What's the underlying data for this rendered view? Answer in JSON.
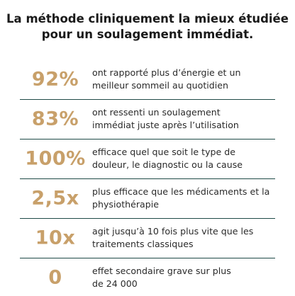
{
  "headline": {
    "line1": "La méthode cliniquement la mieux étudiée",
    "line2": "pour un soulagement immédiat."
  },
  "colors": {
    "accent": "#c8a06a",
    "divider": "#1f4a47",
    "text": "#1f1f1f"
  },
  "stats": [
    {
      "value": "92%",
      "line1": "ont rapporté plus d’énergie et un",
      "line2": "meilleur sommeil au quotidien"
    },
    {
      "value": "83%",
      "line1": "ont ressenti un soulagement",
      "line2": "immédiat juste après l’utilisation"
    },
    {
      "value": "100%",
      "line1": "efficace quel que soit le type de",
      "line2": "douleur, le diagnostic ou la cause"
    },
    {
      "value": "2,5x",
      "line1": "plus efficace que les médicaments et la",
      "line2": "physiothérapie"
    },
    {
      "value": "10x",
      "line1": "agit jusqu’à 10 fois plus vite que les",
      "line2": "traitements classiques"
    },
    {
      "value": "0",
      "line1": "effet secondaire grave sur plus",
      "line2": "de 24 000"
    }
  ]
}
